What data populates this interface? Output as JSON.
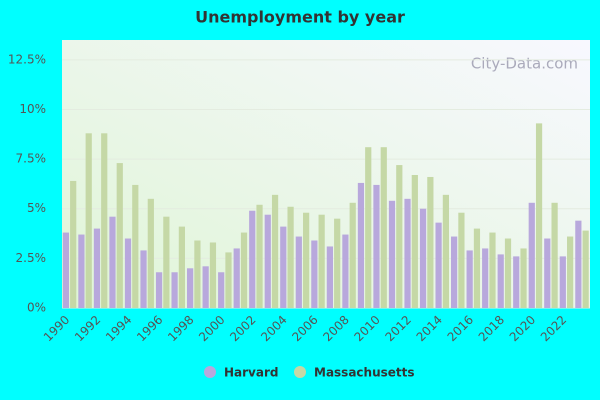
{
  "chart_data": {
    "type": "bar",
    "title": "Unemployment by year",
    "watermark": "City-Data.com",
    "categories": [
      "1990",
      null,
      "1992",
      null,
      "1994",
      null,
      "1996",
      null,
      "1998",
      null,
      "2000",
      null,
      "2002",
      null,
      "2004",
      null,
      "2006",
      null,
      "2008",
      null,
      "2010",
      null,
      "2012",
      null,
      "2014",
      null,
      "2016",
      null,
      "2018",
      null,
      "2020",
      null,
      "2022",
      null
    ],
    "series": [
      {
        "name": "Harvard",
        "color": "#b8a8dc",
        "values": [
          3.8,
          3.7,
          4.0,
          4.6,
          3.5,
          2.9,
          1.8,
          1.8,
          2.0,
          2.1,
          1.8,
          3.0,
          4.9,
          4.7,
          4.1,
          3.6,
          3.4,
          3.1,
          3.7,
          6.3,
          6.2,
          5.4,
          5.5,
          5.0,
          4.3,
          3.6,
          2.9,
          3.0,
          2.7,
          2.6,
          5.3,
          3.5,
          2.6,
          4.4
        ]
      },
      {
        "name": "Massachusetts",
        "color": "#c5d8a6",
        "values": [
          6.4,
          8.8,
          8.8,
          7.3,
          6.2,
          5.5,
          4.6,
          4.1,
          3.4,
          3.3,
          2.8,
          3.8,
          5.2,
          5.7,
          5.1,
          4.8,
          4.7,
          4.5,
          5.3,
          8.1,
          8.1,
          7.2,
          6.7,
          6.6,
          5.7,
          4.8,
          4.0,
          3.8,
          3.5,
          3.0,
          9.3,
          5.3,
          3.6,
          3.9
        ]
      }
    ],
    "ylim": [
      0,
      13.5
    ],
    "yticks": [
      {
        "value": 0,
        "label": "0%"
      },
      {
        "value": 2.5,
        "label": "2.5%"
      },
      {
        "value": 5,
        "label": "5%"
      },
      {
        "value": 7.5,
        "label": "7.5%"
      },
      {
        "value": 10,
        "label": "10%"
      },
      {
        "value": 12.5,
        "label": "12.5%"
      }
    ],
    "grid": true,
    "legend": "bottom"
  }
}
